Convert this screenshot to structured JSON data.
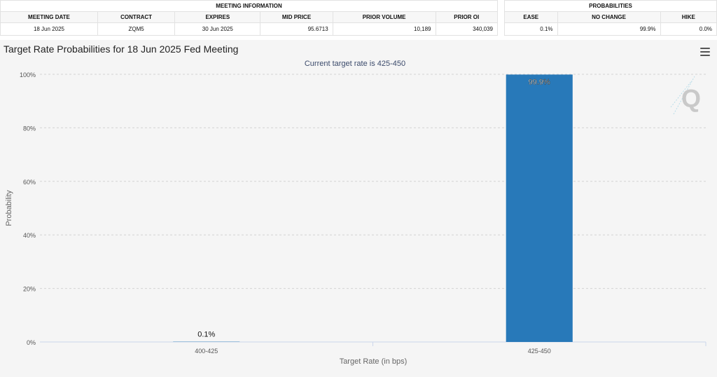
{
  "meeting_info": {
    "group_label": "MEETING INFORMATION",
    "headers": [
      "MEETING DATE",
      "CONTRACT",
      "EXPIRES",
      "MID PRICE",
      "PRIOR VOLUME",
      "PRIOR OI"
    ],
    "row": [
      "18 Jun 2025",
      "ZQM5",
      "30 Jun 2025",
      "95.6713",
      "10,189",
      "340,039"
    ]
  },
  "probabilities": {
    "group_label": "PROBABILITIES",
    "headers": [
      "EASE",
      "NO CHANGE",
      "HIKE"
    ],
    "row": [
      "0.1%",
      "99.9%",
      "0.0%"
    ]
  },
  "chart_data": {
    "type": "bar",
    "title": "Target Rate Probabilities for 18 Jun 2025 Fed Meeting",
    "subtitle": "Current target rate is 425-450",
    "xlabel": "Target Rate (in bps)",
    "ylabel": "Probability",
    "categories": [
      "400-425",
      "425-450"
    ],
    "values": [
      0.1,
      99.9
    ],
    "data_labels": [
      "0.1%",
      "99.9%"
    ],
    "ylim": [
      0,
      100
    ],
    "yticks": [
      0,
      20,
      40,
      60,
      80,
      100
    ],
    "ytick_labels": [
      "0%",
      "20%",
      "40%",
      "60%",
      "80%",
      "100%"
    ],
    "grid": true,
    "bar_color": "#2879b9"
  },
  "watermark_letter": "Q",
  "icons": {
    "menu": "hamburger-menu-icon"
  }
}
